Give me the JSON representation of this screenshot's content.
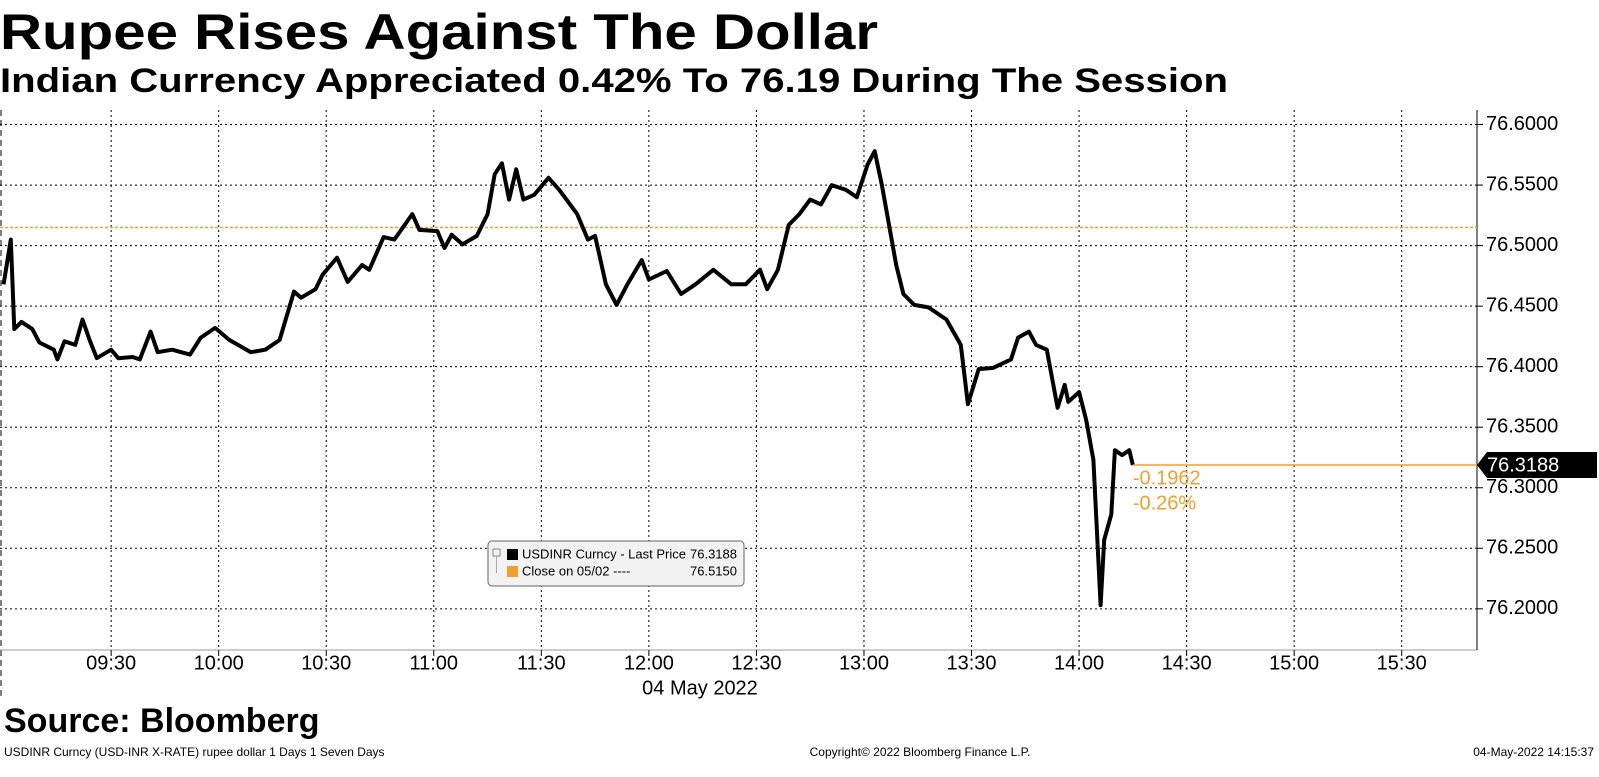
{
  "chart_data": {
    "type": "line",
    "title": "Rupee Rises Against The Dollar",
    "subtitle": "Indian Currency Appreciated 0.42% To 76.19 During The Session",
    "xlabel": "04 May 2022",
    "x": [
      "09:00",
      "09:02",
      "09:03",
      "09:05",
      "09:08",
      "09:10",
      "09:14",
      "09:15",
      "09:17",
      "09:20",
      "09:22",
      "09:24",
      "09:26",
      "09:30",
      "09:32",
      "09:36",
      "09:38",
      "09:41",
      "09:43",
      "09:47",
      "09:52",
      "09:55",
      "09:59",
      "10:03",
      "10:09",
      "10:13",
      "10:17",
      "10:21",
      "10:23",
      "10:27",
      "10:29",
      "10:33",
      "10:36",
      "10:40",
      "10:42",
      "10:46",
      "10:49",
      "10:54",
      "10:56",
      "11:01",
      "11:03",
      "11:05",
      "11:08",
      "11:12",
      "11:15",
      "11:17",
      "11:19",
      "11:21",
      "11:23",
      "11:25",
      "11:28",
      "11:32",
      "11:35",
      "11:40",
      "11:43",
      "11:45",
      "11:48",
      "11:51",
      "11:54",
      "11:58",
      "12:00",
      "12:05",
      "12:09",
      "12:13",
      "12:18",
      "12:23",
      "12:27",
      "12:31",
      "12:33",
      "12:36",
      "12:39",
      "12:42",
      "12:45",
      "12:48",
      "12:51",
      "12:55",
      "12:58",
      "13:01",
      "13:03",
      "13:05",
      "13:09",
      "13:11",
      "13:14",
      "13:18",
      "13:23",
      "13:27",
      "13:29",
      "13:32",
      "13:36",
      "13:41",
      "13:43",
      "13:46",
      "13:48",
      "13:51",
      "13:54",
      "13:56",
      "13:57",
      "14:00",
      "14:02",
      "14:04",
      "14:06",
      "14:07",
      "14:09",
      "14:10",
      "14:12",
      "14:14",
      "14:15"
    ],
    "series": [
      {
        "name": "USDINR Curncy - Last Price",
        "color": "#000000",
        "values": [
          76.468,
          76.505,
          76.431,
          76.437,
          76.431,
          76.42,
          76.414,
          76.406,
          76.421,
          76.418,
          76.439,
          76.422,
          76.407,
          76.414,
          76.407,
          76.408,
          76.406,
          76.429,
          76.412,
          76.414,
          76.41,
          76.424,
          76.432,
          76.422,
          76.412,
          76.414,
          76.422,
          76.462,
          76.457,
          76.464,
          76.476,
          76.49,
          76.47,
          76.484,
          76.48,
          76.507,
          76.505,
          76.526,
          76.513,
          76.512,
          76.498,
          76.509,
          76.501,
          76.508,
          76.526,
          76.559,
          76.568,
          76.538,
          76.563,
          76.538,
          76.542,
          76.556,
          76.546,
          76.526,
          76.505,
          76.508,
          76.468,
          76.451,
          76.468,
          76.488,
          76.472,
          76.479,
          76.46,
          76.468,
          76.48,
          76.468,
          76.468,
          76.48,
          76.464,
          76.48,
          76.517,
          76.526,
          76.538,
          76.534,
          76.55,
          76.546,
          76.54,
          76.567,
          76.578,
          76.55,
          76.484,
          76.46,
          76.451,
          76.449,
          76.439,
          76.418,
          76.369,
          76.398,
          76.399,
          76.406,
          76.424,
          76.429,
          76.418,
          76.414,
          76.366,
          76.385,
          76.371,
          76.379,
          76.356,
          76.323,
          76.203,
          76.257,
          76.278,
          76.331,
          76.327,
          76.331,
          76.3188
        ]
      }
    ],
    "reference_lines": [
      {
        "name": "Close on 05/02 ----",
        "color": "#f0a030",
        "value": 76.515,
        "value_label": "76.5150"
      }
    ],
    "annotations": [
      "-0.1962",
      "-0.26%"
    ],
    "last_color": "#f0a030",
    "xlim": [
      "08:59",
      "15:51"
    ],
    "xticks": [
      "09:30",
      "10:00",
      "10:30",
      "11:00",
      "11:30",
      "12:00",
      "12:30",
      "13:00",
      "13:30",
      "14:00",
      "14:30",
      "15:00",
      "15:30"
    ],
    "ylim": [
      76.166,
      76.612
    ],
    "yticks": [
      {
        "value": 76.2,
        "label": "76.2000"
      },
      {
        "value": 76.25,
        "label": "76.2500"
      },
      {
        "value": 76.3,
        "label": "76.3000"
      },
      {
        "value": 76.35,
        "label": "76.3500"
      },
      {
        "value": 76.4,
        "label": "76.4000"
      },
      {
        "value": 76.45,
        "label": "76.4500"
      },
      {
        "value": 76.5,
        "label": "76.5000"
      },
      {
        "value": 76.55,
        "label": "76.5500"
      },
      {
        "value": 76.6,
        "label": "76.6000"
      }
    ],
    "grid": true,
    "source": "Source: Bloomberg",
    "footer_left": "USDINR Curncy (USD-INR X-RATE) rupee dollar 1 Days 1 Seven Days",
    "footer_center": "Copyright© 2022 Bloomberg Finance L.P.",
    "footer_right": "04-May-2022 14:15:37"
  }
}
